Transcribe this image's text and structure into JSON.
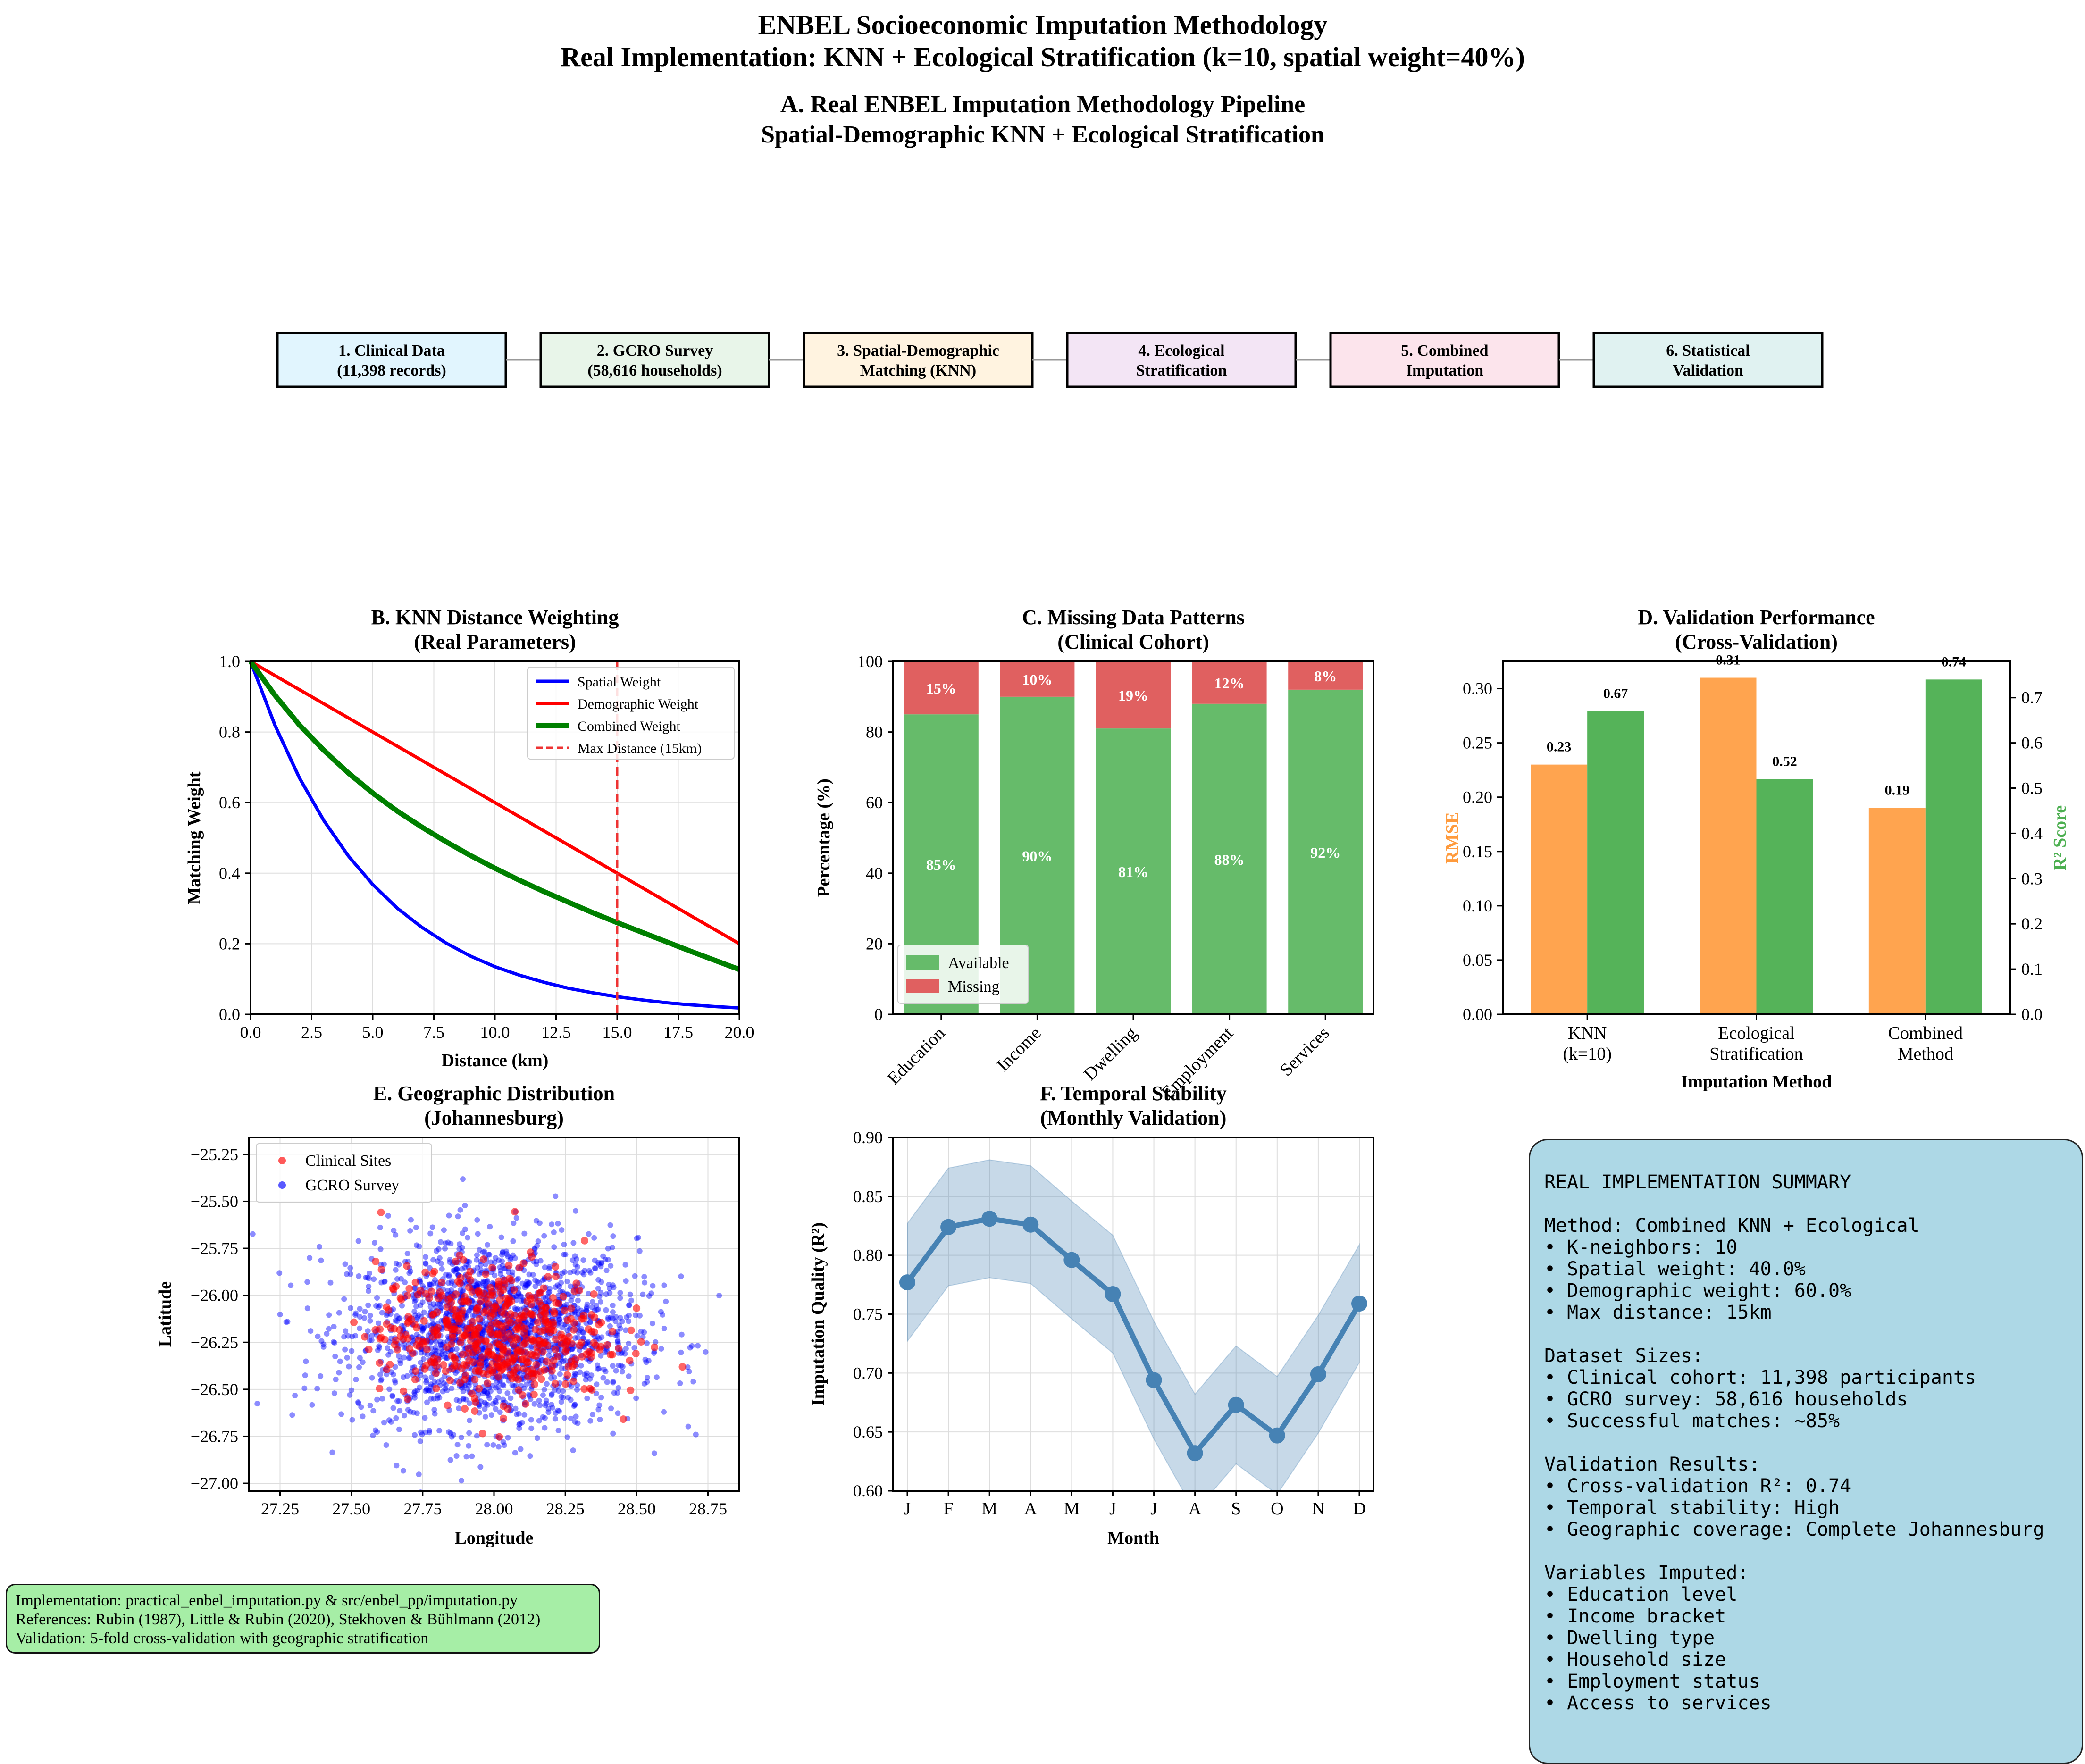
{
  "figure_title": {
    "line1": "ENBEL Socioeconomic Imputation Methodology",
    "line2": "Real Implementation: KNN + Ecological Stratification (k=10, spatial weight=40%)"
  },
  "panel_a": {
    "title1": "A. Real ENBEL Imputation Methodology Pipeline",
    "title2": "Spatial-Demographic KNN + Ecological Stratification",
    "steps": [
      {
        "line1": "1. Clinical Data",
        "line2": "(11,398 records)",
        "color": "#e1f5fe"
      },
      {
        "line1": "2. GCRO Survey",
        "line2": "(58,616 households)",
        "color": "#e8f5e9"
      },
      {
        "line1": "3. Spatial-Demographic",
        "line2": "Matching (KNN)",
        "color": "#fff3e0"
      },
      {
        "line1": "4. Ecological",
        "line2": "Stratification",
        "color": "#f3e5f5"
      },
      {
        "line1": "5. Combined",
        "line2": "Imputation",
        "color": "#fce4ec"
      },
      {
        "line1": "6. Statistical",
        "line2": "Validation",
        "color": "#e0f2f1"
      }
    ]
  },
  "chart_data": [
    {
      "id": "B",
      "type": "line",
      "title": "B. KNN Distance Weighting",
      "subtitle": "(Real Parameters)",
      "xlabel": "Distance (km)",
      "ylabel": "Matching Weight",
      "xlim": [
        0,
        20
      ],
      "ylim": [
        0,
        1
      ],
      "xticks": [
        "0.0",
        "2.5",
        "5.0",
        "7.5",
        "10.0",
        "12.5",
        "15.0",
        "17.5",
        "20.0"
      ],
      "yticks": [
        "0.0",
        "0.2",
        "0.4",
        "0.6",
        "0.8",
        "1.0"
      ],
      "grid": true,
      "legend_position": "top-right",
      "x": [
        0,
        1,
        2,
        3,
        4,
        5,
        6,
        7,
        8,
        9,
        10,
        11,
        12,
        13,
        14,
        15,
        16,
        17,
        18,
        19,
        20
      ],
      "series": [
        {
          "name": "Spatial Weight",
          "color": "#0000ff",
          "values": [
            1.0,
            0.819,
            0.67,
            0.549,
            0.449,
            0.368,
            0.301,
            0.247,
            0.202,
            0.165,
            0.135,
            0.111,
            0.091,
            0.074,
            0.061,
            0.05,
            0.041,
            0.033,
            0.027,
            0.022,
            0.018
          ]
        },
        {
          "name": "Demographic Weight",
          "color": "#ff0000",
          "values": [
            1.0,
            0.96,
            0.92,
            0.88,
            0.84,
            0.8,
            0.76,
            0.72,
            0.68,
            0.64,
            0.6,
            0.56,
            0.52,
            0.48,
            0.44,
            0.4,
            0.36,
            0.32,
            0.28,
            0.24,
            0.2
          ]
        },
        {
          "name": "Combined Weight",
          "color": "#008000",
          "values": [
            1.0,
            0.904,
            0.82,
            0.748,
            0.684,
            0.627,
            0.576,
            0.531,
            0.489,
            0.45,
            0.414,
            0.38,
            0.348,
            0.318,
            0.288,
            0.26,
            0.233,
            0.206,
            0.179,
            0.153,
            0.127
          ]
        }
      ],
      "vline": {
        "x": 15,
        "name": "Max Distance (15km)",
        "color": "#ee3333"
      }
    },
    {
      "id": "C",
      "type": "bar",
      "stacked": true,
      "title": "C. Missing Data Patterns",
      "subtitle": "(Clinical Cohort)",
      "ylabel": "Percentage (%)",
      "ylim": [
        0,
        100
      ],
      "yticks": [
        "0",
        "20",
        "40",
        "60",
        "80",
        "100"
      ],
      "categories": [
        "Education",
        "Income",
        "Dwelling",
        "Employment",
        "Services"
      ],
      "legend_position": "bottom-left",
      "series": [
        {
          "name": "Available",
          "color": "#66bb6a",
          "values": [
            85,
            90,
            81,
            88,
            92
          ],
          "labels": [
            "85%",
            "90%",
            "81%",
            "88%",
            "92%"
          ]
        },
        {
          "name": "Missing",
          "color": "#e06060",
          "values": [
            15,
            10,
            19,
            12,
            8
          ],
          "labels": [
            "15%",
            "10%",
            "19%",
            "12%",
            "8%"
          ]
        }
      ]
    },
    {
      "id": "D",
      "type": "bar",
      "title": "D. Validation Performance",
      "subtitle": "(Cross-Validation)",
      "xlabel": "Imputation Method",
      "ylabel": "RMSE",
      "ylabel_right": "R² Score",
      "ylim": [
        0,
        0.325
      ],
      "ylim_right": [
        0,
        0.78
      ],
      "yticks": [
        "0.00",
        "0.05",
        "0.10",
        "0.15",
        "0.20",
        "0.25",
        "0.30"
      ],
      "yticks_right": [
        "0.0",
        "0.1",
        "0.2",
        "0.3",
        "0.4",
        "0.5",
        "0.6",
        "0.7"
      ],
      "categories": [
        "KNN\n(k=10)",
        "Ecological\nStratification",
        "Combined\nMethod"
      ],
      "series": [
        {
          "name": "RMSE",
          "color": "#ff9a3c",
          "axis": "left",
          "values": [
            0.23,
            0.31,
            0.19
          ],
          "labels": [
            "0.23",
            "0.31",
            "0.19"
          ]
        },
        {
          "name": "R² Score",
          "color": "#4caf50",
          "axis": "right",
          "values": [
            0.67,
            0.52,
            0.74
          ],
          "labels": [
            "0.67",
            "0.52",
            "0.74"
          ]
        }
      ]
    },
    {
      "id": "E",
      "type": "scatter",
      "title": "E. Geographic Distribution",
      "subtitle": "(Johannesburg)",
      "xlabel": "Longitude",
      "ylabel": "Latitude",
      "xlim": [
        27.14,
        28.86
      ],
      "ylim": [
        -27.04,
        -25.16
      ],
      "xticks": [
        "27.25",
        "27.50",
        "27.75",
        "28.00",
        "28.25",
        "28.50",
        "28.75"
      ],
      "yticks": [
        "−25.25",
        "−25.50",
        "−25.75",
        "−26.00",
        "−26.25",
        "−26.50",
        "−26.75",
        "−27.00"
      ],
      "grid": true,
      "legend_position": "top-left",
      "series": [
        {
          "name": "Clinical Sites",
          "color": "#ff0000",
          "center": [
            28.0,
            -26.2
          ],
          "spread": [
            0.2,
            0.18
          ],
          "count": 500
        },
        {
          "name": "GCRO Survey",
          "color": "#0000ff",
          "center": [
            28.0,
            -26.2
          ],
          "spread": [
            0.25,
            0.25
          ],
          "count": 2000
        }
      ]
    },
    {
      "id": "F",
      "type": "line",
      "title": "F. Temporal Stability",
      "subtitle": "(Monthly Validation)",
      "xlabel": "Month",
      "ylabel": "Imputation Quality (R²)",
      "ylim": [
        0.6,
        0.9
      ],
      "yticks": [
        "0.60",
        "0.65",
        "0.70",
        "0.75",
        "0.80",
        "0.85",
        "0.90"
      ],
      "categories": [
        "J",
        "F",
        "M",
        "A",
        "M",
        "J",
        "J",
        "A",
        "S",
        "O",
        "N",
        "D"
      ],
      "grid": true,
      "series": [
        {
          "name": "Imputation Quality",
          "color": "#4682b4",
          "values": [
            0.777,
            0.824,
            0.831,
            0.826,
            0.796,
            0.767,
            0.694,
            0.632,
            0.673,
            0.647,
            0.699,
            0.759
          ],
          "band": 0.05
        }
      ]
    }
  ],
  "implementation_note": [
    "Implementation: practical_enbel_imputation.py & src/enbel_pp/imputation.py",
    "References: Rubin (1987), Little & Rubin (2020), Stekhoven & Bühlmann (2012)",
    "Validation: 5-fold cross-validation with geographic stratification"
  ],
  "summary": {
    "title": "REAL IMPLEMENTATION SUMMARY",
    "lines": [
      "",
      "Method: Combined KNN + Ecological",
      "• K-neighbors: 10",
      "• Spatial weight: 40.0%",
      "• Demographic weight: 60.0%",
      "• Max distance: 15km",
      "",
      "Dataset Sizes:",
      "• Clinical cohort: 11,398 participants",
      "• GCRO survey: 58,616 households",
      "• Successful matches: ~85%",
      "",
      "Validation Results:",
      "• Cross-validation R²: 0.74",
      "• Temporal stability: High",
      "• Geographic coverage: Complete Johannesburg",
      "",
      "Variables Imputed:",
      "• Education level",
      "• Income bracket",
      "• Dwelling type",
      "• Household size",
      "• Employment status",
      "• Access to services"
    ]
  }
}
